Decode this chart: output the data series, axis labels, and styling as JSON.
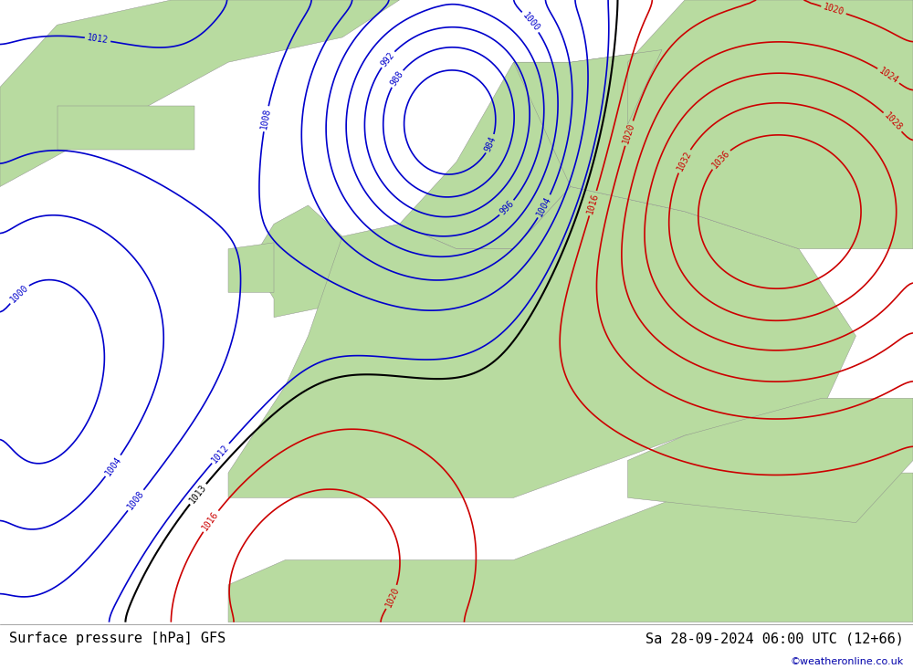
{
  "title_left": "Surface pressure [hPa] GFS",
  "title_right": "Sa 28-09-2024 06:00 UTC (12+66)",
  "watermark": "©weatheronline.co.uk",
  "bg_ocean": "#d0d8e8",
  "bg_land_europe": "#b8dba0",
  "bg_land_other": "#c8e8b0",
  "contour_black_color": "#000000",
  "contour_blue_color": "#0000cc",
  "contour_red_color": "#cc0000",
  "label_fontsize": 8,
  "title_fontsize": 11,
  "watermark_color": "#0000aa",
  "figsize": [
    10.0,
    7.33
  ],
  "dpi": 100
}
